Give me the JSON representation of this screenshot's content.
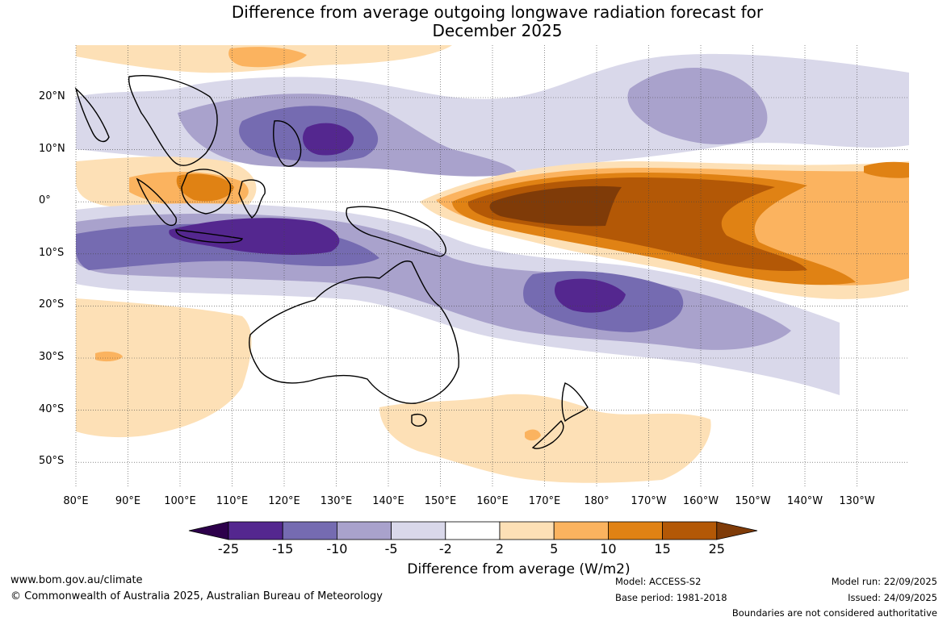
{
  "title": {
    "line1": "Difference from average outgoing longwave radiation forecast for",
    "line2": "December 2025"
  },
  "map": {
    "lat_labels": [
      "20°N",
      "10°N",
      "0°",
      "10°S",
      "20°S",
      "30°S",
      "40°S",
      "50°S"
    ],
    "lon_labels": [
      "80°E",
      "90°E",
      "100°E",
      "110°E",
      "120°E",
      "130°E",
      "140°E",
      "150°E",
      "160°E",
      "170°E",
      "180°",
      "170°W",
      "160°W",
      "150°W",
      "140°W",
      "130°W"
    ],
    "regions": [
      {
        "name": "central-pacific-positive-anomaly",
        "category": "15 to 25"
      },
      {
        "name": "maritime-continent-negative-anomaly",
        "category": "-25 to -15"
      },
      {
        "name": "southwest-pacific-negative-anomaly",
        "category": "-25 to -15"
      }
    ]
  },
  "colorbar": {
    "ticks": [
      "-25",
      "-15",
      "-10",
      "-5",
      "-2",
      "2",
      "5",
      "10",
      "15",
      "25"
    ],
    "colors": [
      "#54278f",
      "#756bb1",
      "#a9a2cc",
      "#d9d8ea",
      "#ffffff",
      "#fde0b6",
      "#fbb35f",
      "#e08214",
      "#b35806"
    ],
    "under_color": "#2d004b",
    "over_color": "#7f3b08",
    "label": "Difference from average (W/m2)"
  },
  "footer": {
    "website": "www.bom.gov.au/climate",
    "copyright": "© Commonwealth of Australia 2025, Australian Bureau of Meteorology",
    "model": "Model: ACCESS-S2",
    "base_period": "Base period: 1981-2018",
    "model_run": "Model run: 22/09/2025",
    "issued": "Issued: 24/09/2025",
    "disclaimer": "Boundaries are not considered authoritative"
  }
}
